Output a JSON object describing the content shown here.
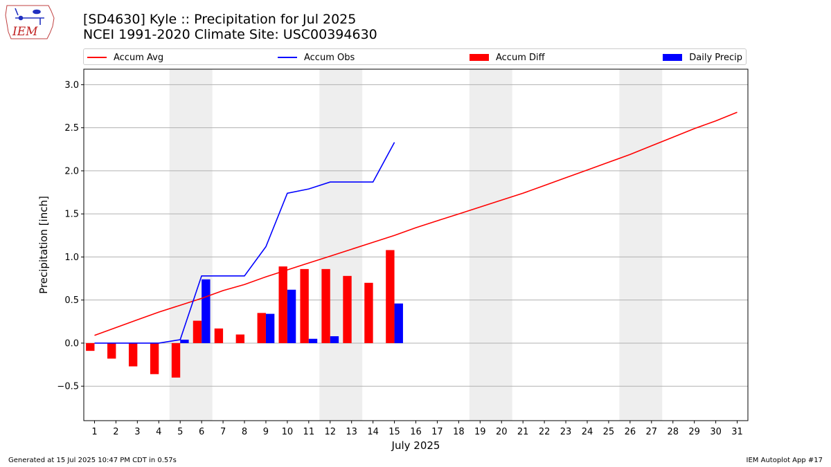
{
  "logo": {
    "text": "IEM",
    "icon": "iowa-state-outline-logo"
  },
  "header": {
    "title_line1": "[SD4630] Kyle :: Precipitation for Jul 2025",
    "title_line2": "NCEI 1991-2020 Climate Site: USC00394630"
  },
  "legend": {
    "placement": "top, above plot",
    "items": [
      {
        "label": "Accum Avg",
        "color": "#ff0000",
        "kind": "line"
      },
      {
        "label": "Accum Obs",
        "color": "#0000ff",
        "kind": "line"
      },
      {
        "label": "Accum Diff",
        "color": "#ff0000",
        "kind": "bar"
      },
      {
        "label": "Daily Precip",
        "color": "#0000ff",
        "kind": "bar"
      }
    ]
  },
  "footer": {
    "left": "Generated at 15 Jul 2025 10:47 PM CDT in 0.57s",
    "right": "IEM Autoplot App #17"
  },
  "chart_data": {
    "type": "bar",
    "xlabel": "July 2025",
    "ylabel": "Precipitation [inch]",
    "xlim": [
      0.5,
      31.5
    ],
    "ylim": [
      -0.9,
      3.18
    ],
    "yticks": [
      -0.5,
      0.0,
      0.5,
      1.0,
      1.5,
      2.0,
      2.5,
      3.0
    ],
    "ytick_labels": [
      "−0.5",
      "0.0",
      "0.5",
      "1.0",
      "1.5",
      "2.0",
      "2.5",
      "3.0"
    ],
    "categories": [
      "1",
      "2",
      "3",
      "4",
      "5",
      "6",
      "7",
      "8",
      "9",
      "10",
      "11",
      "12",
      "13",
      "14",
      "15",
      "16",
      "17",
      "18",
      "19",
      "20",
      "21",
      "22",
      "23",
      "24",
      "25",
      "26",
      "27",
      "28",
      "29",
      "30",
      "31"
    ],
    "grid": "horizontal",
    "weekend_shading": [
      [
        5,
        6
      ],
      [
        12,
        13
      ],
      [
        19,
        20
      ],
      [
        26,
        27
      ]
    ],
    "series": [
      {
        "name": "Accum Avg",
        "type": "line",
        "color": "#ff0000",
        "x": [
          1,
          2,
          3,
          4,
          5,
          6,
          7,
          8,
          9,
          10,
          11,
          12,
          13,
          14,
          15,
          16,
          17,
          18,
          19,
          20,
          21,
          22,
          23,
          24,
          25,
          26,
          27,
          28,
          29,
          30,
          31
        ],
        "values": [
          0.09,
          0.18,
          0.27,
          0.36,
          0.44,
          0.52,
          0.61,
          0.68,
          0.77,
          0.85,
          0.93,
          1.01,
          1.09,
          1.17,
          1.25,
          1.34,
          1.42,
          1.5,
          1.58,
          1.66,
          1.74,
          1.83,
          1.92,
          2.01,
          2.1,
          2.19,
          2.29,
          2.39,
          2.49,
          2.58,
          2.68
        ]
      },
      {
        "name": "Accum Obs",
        "type": "line",
        "color": "#0000ff",
        "x": [
          1,
          2,
          3,
          4,
          5,
          6,
          7,
          8,
          9,
          10,
          11,
          12,
          13,
          14,
          15
        ],
        "values": [
          0.0,
          0.0,
          0.0,
          0.0,
          0.04,
          0.78,
          0.78,
          0.78,
          1.12,
          1.74,
          1.79,
          1.87,
          1.87,
          1.87,
          2.33
        ]
      },
      {
        "name": "Accum Diff",
        "type": "bar",
        "color": "#ff0000",
        "x": [
          1,
          2,
          3,
          4,
          5,
          6,
          7,
          8,
          9,
          10,
          11,
          12,
          13,
          14,
          15
        ],
        "values": [
          -0.09,
          -0.18,
          -0.27,
          -0.36,
          -0.4,
          0.26,
          0.17,
          0.1,
          0.35,
          0.89,
          0.86,
          0.86,
          0.78,
          0.7,
          1.08
        ]
      },
      {
        "name": "Daily Precip",
        "type": "bar",
        "color": "#0000ff",
        "x": [
          1,
          2,
          3,
          4,
          5,
          6,
          7,
          8,
          9,
          10,
          11,
          12,
          13,
          14,
          15
        ],
        "values": [
          0.0,
          0.0,
          0.0,
          0.0,
          0.04,
          0.74,
          0.0,
          0.0,
          0.34,
          0.62,
          0.05,
          0.08,
          0.0,
          0.0,
          0.46
        ]
      }
    ]
  }
}
